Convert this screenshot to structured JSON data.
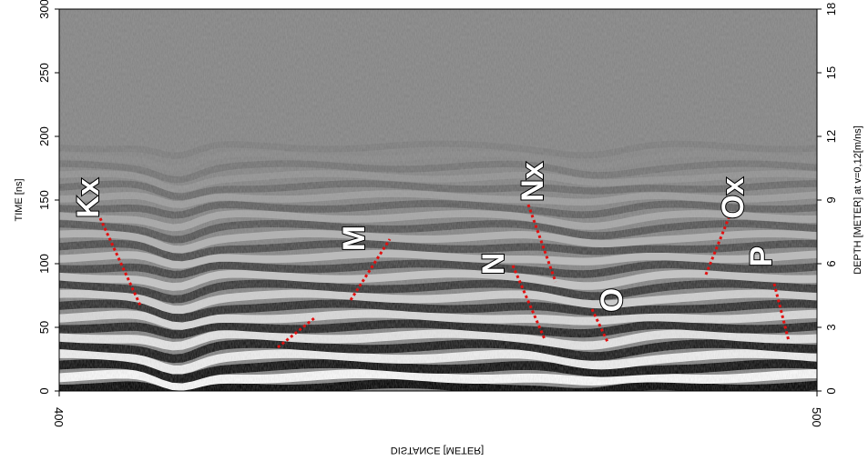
{
  "chart_data": {
    "type": "radargram",
    "y_label": "TIME [ns]",
    "ylim": [
      0,
      300
    ],
    "yticks": [
      0,
      50,
      100,
      150,
      200,
      250,
      300
    ],
    "y2_label": "DEPTH [METER] at v=0,12[m/ns]",
    "y2lim": [
      0,
      18
    ],
    "y2ticks": [
      0,
      3,
      6,
      9,
      12,
      15,
      18
    ],
    "x_label": "DISTANCE [METER]",
    "xlim": [
      400,
      500
    ],
    "xticks": [
      400,
      500
    ],
    "annotations": [
      "Kx",
      "M",
      "N",
      "Nx",
      "O",
      "Ox",
      "P"
    ]
  }
}
